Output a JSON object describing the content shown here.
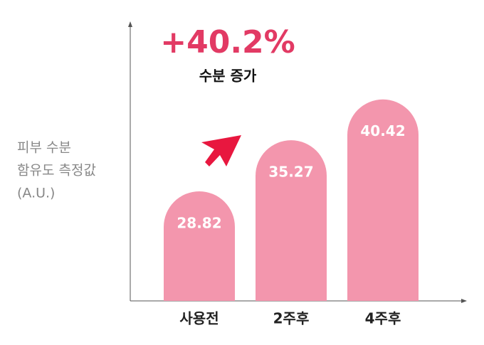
{
  "chart_data": {
    "type": "bar",
    "categories": [
      "사용전",
      "2주후",
      "4주후"
    ],
    "values": [
      28.82,
      35.27,
      40.42
    ],
    "color": "#f396ad",
    "ylim": [
      15,
      50
    ],
    "grid": false,
    "ylabel_lines": [
      "피부 수분",
      "함유도 측정값",
      "(A.U.)"
    ],
    "annotation": {
      "headline": "+40.2%",
      "caption": "수분 증가",
      "color": "#e23a64"
    }
  }
}
